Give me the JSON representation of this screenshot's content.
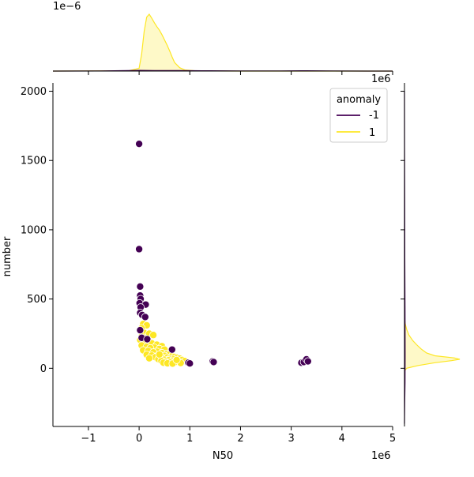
{
  "chart_data": {
    "type": "scatter",
    "xlabel": "N50",
    "ylabel": "number",
    "x_offset_label": "1e6",
    "y_offset_label": "1e6",
    "top_marginal_offset_label": "1e−6",
    "xlim": [
      -1.7,
      5.0
    ],
    "ylim": [
      -420,
      2060
    ],
    "x_ticks": [
      -1,
      0,
      1,
      2,
      3,
      4,
      5
    ],
    "y_ticks": [
      0,
      500,
      1000,
      1500,
      2000
    ],
    "legend": {
      "title": "anomaly",
      "position": "upper-right"
    },
    "series": [
      {
        "name": "-1",
        "color": "#440154",
        "points": [
          [
            0.0,
            1620
          ],
          [
            0.0,
            860
          ],
          [
            0.02,
            590
          ],
          [
            0.02,
            525
          ],
          [
            0.03,
            500
          ],
          [
            0.01,
            470
          ],
          [
            0.13,
            460
          ],
          [
            0.03,
            440
          ],
          [
            0.02,
            400
          ],
          [
            0.06,
            385
          ],
          [
            0.12,
            370
          ],
          [
            0.02,
            275
          ],
          [
            0.05,
            220
          ],
          [
            0.16,
            210
          ],
          [
            0.65,
            135
          ],
          [
            0.97,
            40
          ],
          [
            1.0,
            35
          ],
          [
            1.45,
            50
          ],
          [
            1.47,
            45
          ],
          [
            3.2,
            40
          ],
          [
            3.25,
            45
          ],
          [
            3.3,
            65
          ],
          [
            3.33,
            50
          ]
        ]
      },
      {
        "name": "1",
        "color": "#fde725",
        "points": [
          [
            0.08,
            320
          ],
          [
            0.15,
            310
          ],
          [
            0.05,
            290
          ],
          [
            0.1,
            255
          ],
          [
            0.2,
            250
          ],
          [
            0.28,
            240
          ],
          [
            0.05,
            230
          ],
          [
            0.12,
            215
          ],
          [
            0.02,
            205
          ],
          [
            0.18,
            195
          ],
          [
            0.1,
            185
          ],
          [
            0.25,
            180
          ],
          [
            0.35,
            170
          ],
          [
            0.05,
            165
          ],
          [
            0.45,
            160
          ],
          [
            0.15,
            155
          ],
          [
            0.3,
            150
          ],
          [
            0.22,
            145
          ],
          [
            0.4,
            140
          ],
          [
            0.5,
            135
          ],
          [
            0.08,
            130
          ],
          [
            0.18,
            125
          ],
          [
            0.35,
            120
          ],
          [
            0.28,
            115
          ],
          [
            0.45,
            110
          ],
          [
            0.55,
            105
          ],
          [
            0.6,
            100
          ],
          [
            0.15,
            98
          ],
          [
            0.38,
            95
          ],
          [
            0.25,
            92
          ],
          [
            0.5,
            90
          ],
          [
            0.65,
            88
          ],
          [
            0.42,
            85
          ],
          [
            0.7,
            82
          ],
          [
            0.32,
            80
          ],
          [
            0.55,
            78
          ],
          [
            0.75,
            76
          ],
          [
            0.45,
            74
          ],
          [
            0.2,
            72
          ],
          [
            0.8,
            70
          ],
          [
            0.6,
            68
          ],
          [
            0.38,
            66
          ],
          [
            0.68,
            64
          ],
          [
            0.5,
            62
          ],
          [
            0.85,
            60
          ],
          [
            0.58,
            58
          ],
          [
            0.72,
            56
          ],
          [
            0.44,
            54
          ],
          [
            0.9,
            52
          ],
          [
            0.65,
            50
          ],
          [
            0.52,
            48
          ],
          [
            0.78,
            46
          ],
          [
            0.6,
            44
          ],
          [
            0.7,
            42
          ],
          [
            0.48,
            40
          ],
          [
            0.82,
            38
          ],
          [
            0.56,
            36
          ],
          [
            0.66,
            34
          ],
          [
            0.74,
            60
          ],
          [
            0.4,
            100
          ]
        ]
      }
    ],
    "top_marginal": {
      "type": "kde",
      "series_1_density": [
        [
          -1.7,
          0
        ],
        [
          -0.2,
          0.005
        ],
        [
          0.0,
          0.05
        ],
        [
          0.05,
          0.3
        ],
        [
          0.1,
          0.7
        ],
        [
          0.15,
          0.95
        ],
        [
          0.2,
          1.0
        ],
        [
          0.25,
          0.93
        ],
        [
          0.3,
          0.85
        ],
        [
          0.35,
          0.78
        ],
        [
          0.4,
          0.72
        ],
        [
          0.45,
          0.64
        ],
        [
          0.5,
          0.55
        ],
        [
          0.55,
          0.46
        ],
        [
          0.6,
          0.36
        ],
        [
          0.65,
          0.25
        ],
        [
          0.7,
          0.15
        ],
        [
          0.8,
          0.06
        ],
        [
          0.9,
          0.02
        ],
        [
          1.1,
          0.006
        ],
        [
          1.5,
          0.002
        ],
        [
          2.0,
          0
        ],
        [
          5.0,
          0
        ]
      ],
      "series_m1_density": [
        [
          -1.7,
          0
        ],
        [
          -0.8,
          0.002
        ],
        [
          -0.2,
          0.008
        ],
        [
          0.0,
          0.012
        ],
        [
          0.3,
          0.01
        ],
        [
          0.8,
          0.008
        ],
        [
          1.4,
          0.006
        ],
        [
          2.0,
          0.002
        ],
        [
          2.8,
          0.003
        ],
        [
          3.3,
          0.005
        ],
        [
          3.8,
          0.002
        ],
        [
          4.5,
          0
        ],
        [
          5.0,
          0
        ]
      ]
    },
    "right_marginal": {
      "type": "kde",
      "series_1_density": [
        [
          -20,
          0
        ],
        [
          0,
          0.04
        ],
        [
          20,
          0.25
        ],
        [
          40,
          0.55
        ],
        [
          55,
          0.85
        ],
        [
          65,
          1.0
        ],
        [
          75,
          0.9
        ],
        [
          90,
          0.55
        ],
        [
          110,
          0.4
        ],
        [
          140,
          0.3
        ],
        [
          170,
          0.22
        ],
        [
          200,
          0.15
        ],
        [
          240,
          0.08
        ],
        [
          280,
          0.04
        ],
        [
          320,
          0.015
        ],
        [
          360,
          0
        ]
      ],
      "series_m1_density": [
        [
          -400,
          0
        ],
        [
          -250,
          0.004
        ],
        [
          -100,
          0.01
        ],
        [
          100,
          0.012
        ],
        [
          400,
          0.01
        ],
        [
          800,
          0.006
        ],
        [
          1200,
          0.004
        ],
        [
          1600,
          0.002
        ],
        [
          2000,
          0
        ]
      ]
    }
  }
}
